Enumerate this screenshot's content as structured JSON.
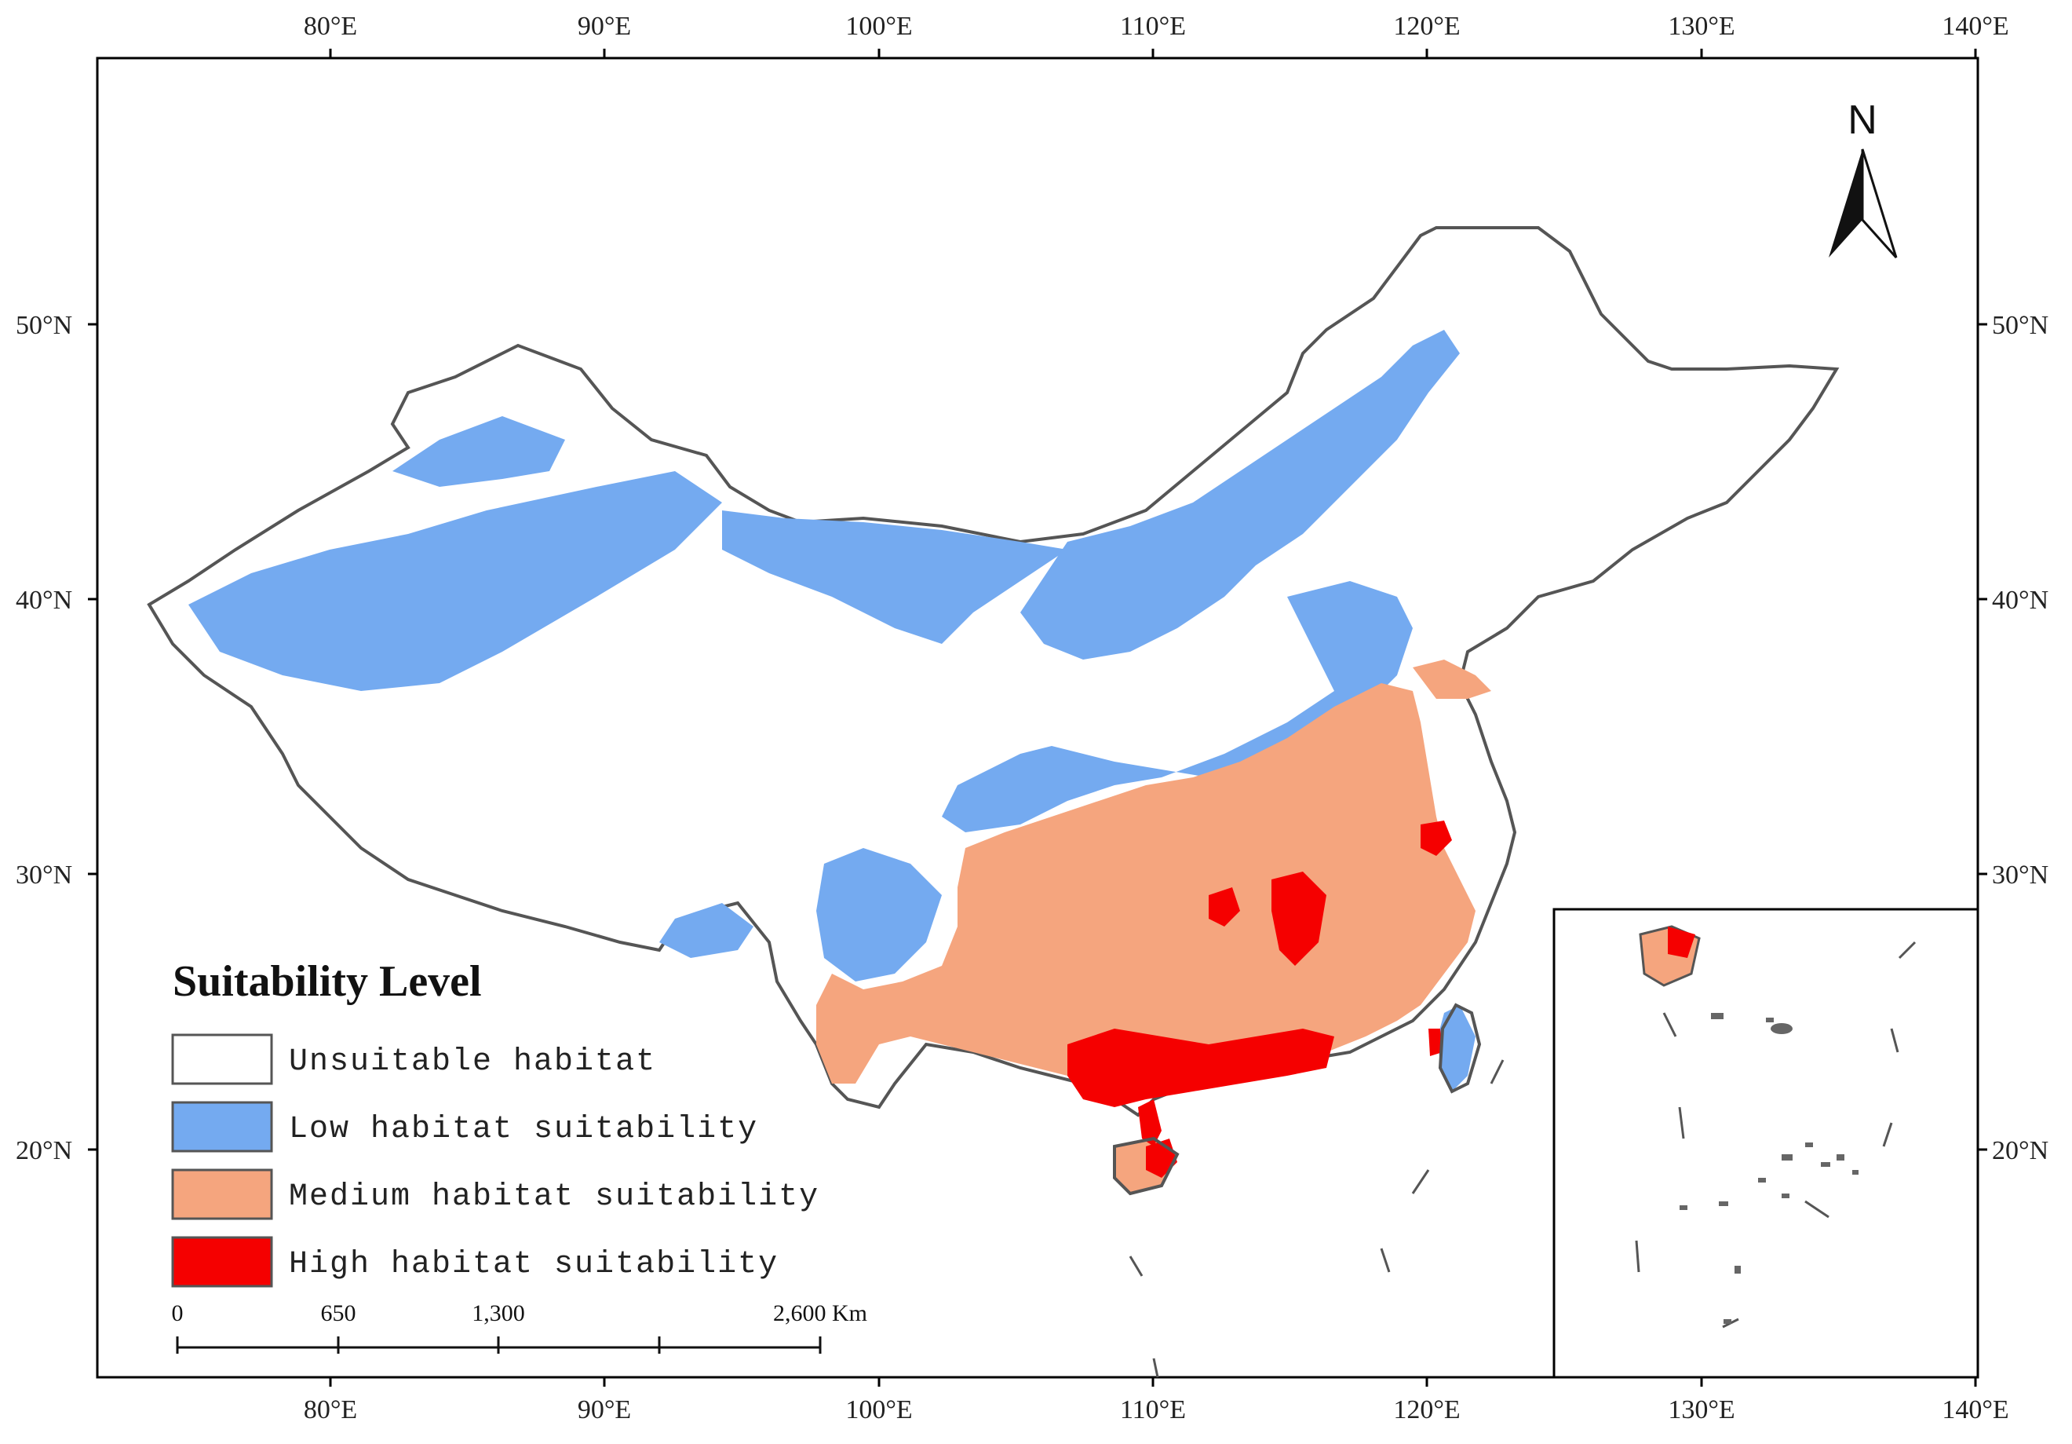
{
  "map": {
    "axes": {
      "lon_ticks": [
        "80°E",
        "90°E",
        "100°E",
        "110°E",
        "120°E",
        "130°E",
        "140°E"
      ],
      "lat_ticks": [
        "50°N",
        "40°N",
        "30°N",
        "20°N"
      ]
    },
    "north_arrow": {
      "label": "N",
      "icon": "north-arrow-icon"
    },
    "legend": {
      "title": "Suitability Level",
      "items": [
        {
          "label": "Unsuitable habitat",
          "color": "#ffffff"
        },
        {
          "label": "Low habitat suitability",
          "color": "#74aaf0"
        },
        {
          "label": "Medium habitat suitability",
          "color": "#f5a57e"
        },
        {
          "label": "High habitat suitability",
          "color": "#f50000"
        }
      ]
    },
    "scale_bar": {
      "labels": [
        "0",
        "650",
        "1,300",
        "2,600 Km"
      ]
    }
  }
}
